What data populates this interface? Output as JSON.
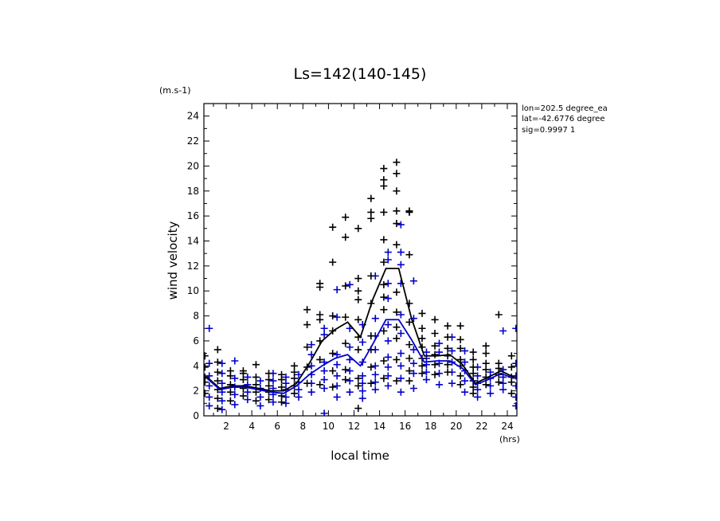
{
  "chart_data": {
    "type": "scatter",
    "title": "Ls=142(140-145)",
    "xlabel": "local time",
    "ylabel": "wind velocity",
    "x_unit": "(hrs)",
    "y_unit": "(m.s-1)",
    "xlim": [
      0.25,
      24.75
    ],
    "ylim": [
      0,
      25
    ],
    "xticks": [
      "2",
      "4",
      "6",
      "8",
      "10",
      "12",
      "14",
      "16",
      "18",
      "20",
      "22",
      "24"
    ],
    "yticks": [
      "0",
      "2",
      "4",
      "6",
      "8",
      "10",
      "12",
      "14",
      "16",
      "18",
      "20",
      "22",
      "24"
    ],
    "info": [
      "lon=202.5 degree_ea",
      "lat=-42.6776 degree",
      "sig=0.9997 1"
    ],
    "colors": {
      "series_black": "#000000",
      "series_blue": "#0000cc"
    },
    "series": [
      {
        "name": "black",
        "color": "#000000",
        "mean_x": [
          0.5,
          1.5,
          2.5,
          3.5,
          4.5,
          5.5,
          6.5,
          7.5,
          8.5,
          9.5,
          10.5,
          11.5,
          12.5,
          13.5,
          14.5,
          15.5,
          16.5,
          17.5,
          18.5,
          19.5,
          20.5,
          21.5,
          22.5,
          23.5,
          24.5
        ],
        "mean": [
          3.1,
          2.2,
          2.4,
          2.4,
          2.2,
          2.0,
          2.0,
          2.6,
          4.2,
          6.0,
          6.9,
          7.5,
          6.3,
          9.4,
          11.8,
          11.8,
          7.8,
          4.8,
          4.8,
          4.9,
          4.1,
          2.6,
          3.1,
          3.6,
          3.1
        ],
        "points": [
          [
            0.5,
            [
              1.8,
              2.7,
              3.1,
              3.9,
              4.8
            ]
          ],
          [
            1.5,
            [
              0.6,
              1.4,
              2.1,
              2.8,
              3.5,
              4.3,
              5.3
            ]
          ],
          [
            2.5,
            [
              1.2,
              1.9,
              2.5,
              3.2,
              3.6
            ]
          ],
          [
            3.5,
            [
              1.6,
              2.2,
              2.9,
              3.4,
              3.6
            ]
          ],
          [
            4.5,
            [
              1.2,
              1.9,
              2.5,
              3.1,
              4.1
            ]
          ],
          [
            5.5,
            [
              1.3,
              1.9,
              2.4,
              2.9,
              3.4
            ]
          ],
          [
            6.5,
            [
              1.1,
              1.6,
              2.3,
              2.9,
              3.3
            ]
          ],
          [
            7.5,
            [
              1.8,
              2.4,
              3.0,
              3.5,
              4.0
            ]
          ],
          [
            8.5,
            [
              2.6,
              3.9,
              5.5,
              7.3,
              8.5
            ]
          ],
          [
            9.5,
            [
              2.5,
              4.5,
              6.0,
              7.7,
              8.1,
              10.3,
              10.6
            ]
          ],
          [
            10.5,
            [
              2.3,
              3.6,
              5.0,
              6.8,
              8.0,
              12.3,
              15.1
            ]
          ],
          [
            11.5,
            [
              2.9,
              3.7,
              5.8,
              7.9,
              10.4,
              14.3,
              15.9
            ]
          ],
          [
            12.5,
            [
              0.6,
              2.4,
              3.0,
              5.3,
              6.3,
              7.7,
              9.3,
              10.0,
              11.0,
              15.0
            ]
          ],
          [
            13.5,
            [
              2.6,
              3.9,
              5.3,
              6.4,
              9.0,
              11.2,
              15.8,
              16.3,
              17.4
            ]
          ],
          [
            14.5,
            [
              3.0,
              4.4,
              6.8,
              8.5,
              9.5,
              10.5,
              12.3,
              14.1,
              16.3,
              18.4,
              18.9,
              19.8
            ]
          ],
          [
            15.5,
            [
              2.8,
              4.5,
              6.2,
              7.1,
              8.3,
              9.9,
              13.7,
              15.4,
              16.4,
              18.0,
              19.4,
              20.3
            ]
          ],
          [
            16.5,
            [
              2.8,
              3.6,
              4.6,
              5.7,
              7.5,
              9.0,
              12.9,
              16.3,
              16.4
            ]
          ],
          [
            17.5,
            [
              3.4,
              4.0,
              4.6,
              5.5,
              6.2,
              7.0,
              8.2
            ]
          ],
          [
            18.5,
            [
              3.3,
              4.1,
              4.9,
              5.6,
              6.6,
              7.7
            ]
          ],
          [
            19.5,
            [
              3.5,
              4.1,
              4.8,
              5.4,
              6.3,
              7.2
            ]
          ],
          [
            20.5,
            [
              2.5,
              3.2,
              4.0,
              4.5,
              5.4,
              6.1,
              7.2
            ]
          ],
          [
            21.5,
            [
              1.8,
              2.3,
              2.8,
              3.4,
              3.9,
              4.5,
              5.1
            ]
          ],
          [
            22.5,
            [
              2.5,
              3.1,
              3.7,
              4.2,
              5.0,
              5.6
            ]
          ],
          [
            23.5,
            [
              2.7,
              3.3,
              3.8,
              4.2,
              8.1
            ]
          ],
          [
            24.5,
            [
              1.8,
              2.7,
              3.1,
              3.9,
              4.8
            ]
          ]
        ]
      },
      {
        "name": "blue",
        "color": "#0000cc",
        "mean_x": [
          0.5,
          1.5,
          2.5,
          3.5,
          4.5,
          5.5,
          6.5,
          7.5,
          8.5,
          9.5,
          10.5,
          11.5,
          12.5,
          13.5,
          14.5,
          15.5,
          16.5,
          17.5,
          18.5,
          19.5,
          20.5,
          21.5,
          22.5,
          23.5,
          24.5
        ],
        "mean": [
          3.0,
          2.1,
          2.3,
          2.3,
          2.1,
          1.9,
          1.8,
          2.4,
          3.3,
          4.0,
          4.6,
          4.9,
          4.0,
          5.8,
          7.7,
          7.7,
          6.1,
          4.3,
          4.4,
          4.4,
          3.8,
          2.5,
          2.9,
          3.4,
          3.0
        ],
        "points": [
          [
            0.5,
            [
              0.8,
              1.5,
              2.4,
              3.2,
              4.2,
              7.0
            ]
          ],
          [
            1.5,
            [
              0.5,
              1.2,
              1.9,
              2.6,
              3.4,
              4.2
            ]
          ],
          [
            2.5,
            [
              0.9,
              1.7,
              2.3,
              3.0,
              4.4
            ]
          ],
          [
            3.5,
            [
              1.3,
              1.9,
              2.5,
              3.1
            ]
          ],
          [
            4.5,
            [
              0.8,
              1.5,
              2.2,
              2.8
            ]
          ],
          [
            5.5,
            [
              1.1,
              1.7,
              2.2,
              2.8,
              3.4
            ]
          ],
          [
            6.5,
            [
              1.0,
              1.5,
              2.1,
              2.6,
              3.1
            ]
          ],
          [
            7.5,
            [
              1.5,
              2.1,
              2.7,
              3.3
            ]
          ],
          [
            8.5,
            [
              1.9,
              2.6,
              3.3,
              4.0,
              4.9,
              5.7
            ]
          ],
          [
            9.5,
            [
              0.2,
              2.2,
              2.9,
              3.6,
              4.3,
              6.5,
              7.0
            ]
          ],
          [
            10.5,
            [
              1.5,
              2.4,
              3.2,
              4.1,
              4.9,
              7.9,
              10.1
            ]
          ],
          [
            11.5,
            [
              1.9,
              2.8,
              3.6,
              4.5,
              5.5,
              7.0,
              10.5
            ]
          ],
          [
            12.5,
            [
              1.4,
              2.0,
              2.6,
              3.2,
              4.3,
              5.9,
              7.3
            ]
          ],
          [
            13.5,
            [
              2.1,
              2.7,
              3.3,
              4.0,
              5.3,
              6.4,
              7.8,
              11.2
            ]
          ],
          [
            14.5,
            [
              2.4,
              3.2,
              3.9,
              4.7,
              6.0,
              7.3,
              9.4,
              10.6,
              12.5,
              13.1
            ]
          ],
          [
            15.5,
            [
              1.9,
              3.0,
              4.0,
              5.0,
              6.6,
              8.1,
              10.6,
              12.1,
              13.1,
              15.3
            ]
          ],
          [
            16.5,
            [
              2.2,
              3.4,
              4.2,
              5.3,
              7.8,
              10.8
            ]
          ],
          [
            17.5,
            [
              2.9,
              3.5,
              4.1,
              4.6,
              5.1
            ]
          ],
          [
            18.5,
            [
              2.5,
              3.4,
              4.2,
              5.1,
              5.8
            ]
          ],
          [
            19.5,
            [
              2.6,
              3.5,
              4.3,
              5.2,
              6.3
            ]
          ],
          [
            20.5,
            [
              1.9,
              2.8,
              3.6,
              4.3,
              5.2
            ]
          ],
          [
            21.5,
            [
              1.5,
              2.1,
              2.6,
              3.2,
              3.9
            ]
          ],
          [
            22.5,
            [
              1.8,
              2.4,
              3.0,
              3.5
            ]
          ],
          [
            23.5,
            [
              2.1,
              2.6,
              3.1,
              3.7,
              6.8
            ]
          ],
          [
            24.5,
            [
              0.8,
              1.5,
              2.4,
              3.2,
              4.2,
              7.0
            ]
          ]
        ]
      }
    ]
  }
}
